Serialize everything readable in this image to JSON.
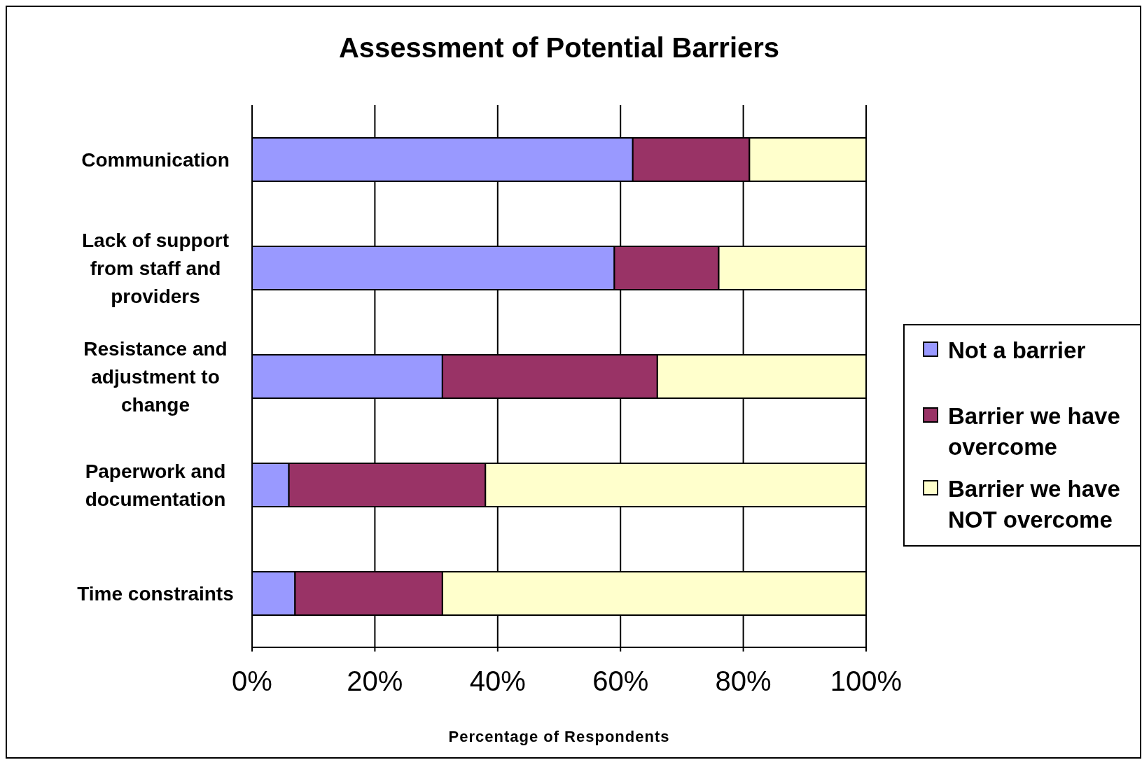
{
  "chart_data": {
    "type": "bar",
    "orientation": "horizontal",
    "stacked": true,
    "title": "Assessment of Potential Barriers",
    "xlabel": "Percentage of Respondents",
    "categories": [
      "Communication",
      "Lack of support from staff and providers",
      "Resistance and adjustment to change",
      "Paperwork and documentation",
      "Time constraints"
    ],
    "series": [
      {
        "name": "Not a barrier",
        "color": "#9999ff",
        "values": [
          62,
          59,
          31,
          6,
          7
        ]
      },
      {
        "name": "Barrier we have overcome",
        "color": "#993366",
        "values": [
          19,
          17,
          35,
          32,
          24
        ]
      },
      {
        "name": "Barrier we have NOT overcome",
        "color": "#ffffcc",
        "values": [
          19,
          24,
          34,
          62,
          69
        ]
      }
    ],
    "xlim": [
      0,
      100
    ],
    "xticks": [
      {
        "value": 0,
        "label": "0%"
      },
      {
        "value": 20,
        "label": "20%"
      },
      {
        "value": 40,
        "label": "40%"
      },
      {
        "value": 60,
        "label": "60%"
      },
      {
        "value": 80,
        "label": "80%"
      },
      {
        "value": 100,
        "label": "100%"
      }
    ],
    "grid": "x",
    "legend": "right"
  }
}
